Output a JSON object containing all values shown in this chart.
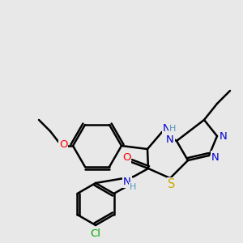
{
  "background_color": "#e8e8e8",
  "bond_color": "#000000",
  "bond_width": 1.8,
  "atom_colors": {
    "N": "#0000cc",
    "O": "#ff0000",
    "S": "#ccaa00",
    "Cl": "#00aa00",
    "C": "#000000",
    "H": "#5599bb"
  },
  "font_size": 9.5
}
